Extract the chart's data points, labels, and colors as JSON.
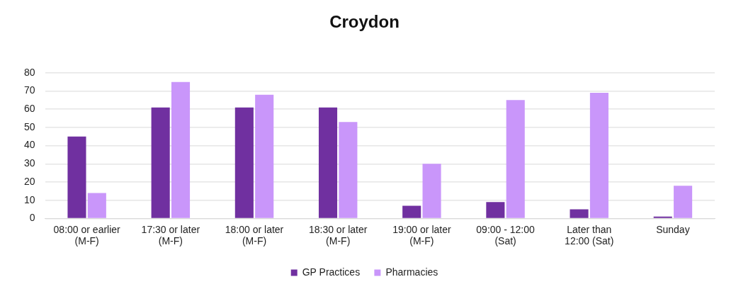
{
  "chart_data": {
    "type": "bar",
    "title": "Croydon",
    "categories": [
      "08:00 or earlier\n(M-F)",
      "17:30 or later\n(M-F)",
      "18:00 or later\n(M-F)",
      "18:30 or later\n(M-F)",
      "19:00 or later\n(M-F)",
      "09:00 - 12:00\n(Sat)",
      "Later than\n12:00 (Sat)",
      "Sunday"
    ],
    "series": [
      {
        "name": "GP Practices",
        "color": "#7030a0",
        "values": [
          45,
          61,
          61,
          61,
          7,
          9,
          5,
          1
        ]
      },
      {
        "name": "Pharmacies",
        "color": "#c996fa",
        "values": [
          14,
          75,
          68,
          53,
          30,
          65,
          69,
          18
        ]
      }
    ],
    "ylim": [
      0,
      80
    ],
    "yticks": [
      0,
      10,
      20,
      30,
      40,
      50,
      60,
      70,
      80
    ],
    "grid": "y",
    "legend": "bottom"
  }
}
